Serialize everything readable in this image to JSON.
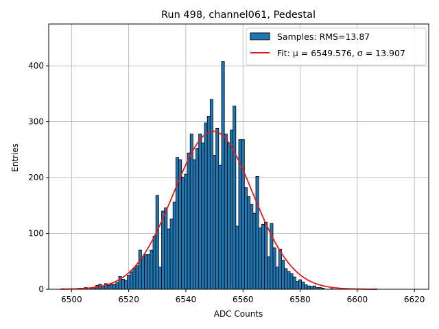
{
  "chart_data": {
    "type": "bar",
    "title": "Run 498, channel061, Pedestal",
    "xlabel": "ADC Counts",
    "ylabel": "Entries",
    "xlim": [
      6492,
      6625
    ],
    "ylim": [
      0,
      475
    ],
    "xticks": [
      6500,
      6520,
      6540,
      6560,
      6580,
      6600,
      6620
    ],
    "yticks": [
      0,
      100,
      200,
      300,
      400
    ],
    "grid": true,
    "legend_position": "top-right",
    "colors": {
      "bar": "#1f77b4",
      "bar_edge": "#000000",
      "fit": "#e41a1c",
      "grid": "#b0b0b0"
    },
    "legend": [
      {
        "label": "Samples: RMS=13.87",
        "marker": "patch"
      },
      {
        "label": "Fit: μ = 6549.576, σ = 13.907",
        "marker": "line"
      }
    ],
    "series": [
      {
        "name": "Samples: RMS=13.87",
        "kind": "histogram",
        "bin_width": 1,
        "bins": [
          {
            "x": 6497,
            "y": 1
          },
          {
            "x": 6500,
            "y": 1
          },
          {
            "x": 6503,
            "y": 2
          },
          {
            "x": 6505,
            "y": 3
          },
          {
            "x": 6507,
            "y": 2
          },
          {
            "x": 6508,
            "y": 4
          },
          {
            "x": 6509,
            "y": 7
          },
          {
            "x": 6510,
            "y": 9
          },
          {
            "x": 6511,
            "y": 6
          },
          {
            "x": 6512,
            "y": 10
          },
          {
            "x": 6513,
            "y": 7
          },
          {
            "x": 6514,
            "y": 9
          },
          {
            "x": 6515,
            "y": 9
          },
          {
            "x": 6516,
            "y": 12
          },
          {
            "x": 6517,
            "y": 23
          },
          {
            "x": 6518,
            "y": 18
          },
          {
            "x": 6519,
            "y": 16
          },
          {
            "x": 6520,
            "y": 25
          },
          {
            "x": 6521,
            "y": 31
          },
          {
            "x": 6522,
            "y": 38
          },
          {
            "x": 6523,
            "y": 42
          },
          {
            "x": 6524,
            "y": 70
          },
          {
            "x": 6525,
            "y": 58
          },
          {
            "x": 6526,
            "y": 62
          },
          {
            "x": 6527,
            "y": 62
          },
          {
            "x": 6528,
            "y": 70
          },
          {
            "x": 6529,
            "y": 95
          },
          {
            "x": 6530,
            "y": 168
          },
          {
            "x": 6531,
            "y": 40
          },
          {
            "x": 6532,
            "y": 140
          },
          {
            "x": 6533,
            "y": 146
          },
          {
            "x": 6534,
            "y": 108
          },
          {
            "x": 6535,
            "y": 126
          },
          {
            "x": 6536,
            "y": 156
          },
          {
            "x": 6537,
            "y": 236
          },
          {
            "x": 6538,
            "y": 232
          },
          {
            "x": 6539,
            "y": 201
          },
          {
            "x": 6540,
            "y": 206
          },
          {
            "x": 6541,
            "y": 244
          },
          {
            "x": 6542,
            "y": 278
          },
          {
            "x": 6543,
            "y": 232
          },
          {
            "x": 6544,
            "y": 252
          },
          {
            "x": 6545,
            "y": 278
          },
          {
            "x": 6546,
            "y": 262
          },
          {
            "x": 6547,
            "y": 298
          },
          {
            "x": 6548,
            "y": 310
          },
          {
            "x": 6549,
            "y": 340
          },
          {
            "x": 6550,
            "y": 240
          },
          {
            "x": 6551,
            "y": 288
          },
          {
            "x": 6552,
            "y": 222
          },
          {
            "x": 6553,
            "y": 408
          },
          {
            "x": 6554,
            "y": 278
          },
          {
            "x": 6555,
            "y": 262
          },
          {
            "x": 6556,
            "y": 285
          },
          {
            "x": 6557,
            "y": 328
          },
          {
            "x": 6558,
            "y": 113
          },
          {
            "x": 6559,
            "y": 268
          },
          {
            "x": 6560,
            "y": 268
          },
          {
            "x": 6561,
            "y": 182
          },
          {
            "x": 6562,
            "y": 166
          },
          {
            "x": 6563,
            "y": 152
          },
          {
            "x": 6564,
            "y": 136
          },
          {
            "x": 6565,
            "y": 202
          },
          {
            "x": 6566,
            "y": 110
          },
          {
            "x": 6567,
            "y": 116
          },
          {
            "x": 6568,
            "y": 120
          },
          {
            "x": 6569,
            "y": 58
          },
          {
            "x": 6570,
            "y": 118
          },
          {
            "x": 6571,
            "y": 74
          },
          {
            "x": 6572,
            "y": 40
          },
          {
            "x": 6573,
            "y": 72
          },
          {
            "x": 6574,
            "y": 52
          },
          {
            "x": 6575,
            "y": 37
          },
          {
            "x": 6576,
            "y": 32
          },
          {
            "x": 6577,
            "y": 28
          },
          {
            "x": 6578,
            "y": 22
          },
          {
            "x": 6579,
            "y": 14
          },
          {
            "x": 6580,
            "y": 17
          },
          {
            "x": 6581,
            "y": 13
          },
          {
            "x": 6582,
            "y": 8
          },
          {
            "x": 6583,
            "y": 6
          },
          {
            "x": 6584,
            "y": 5
          },
          {
            "x": 6585,
            "y": 6
          },
          {
            "x": 6586,
            "y": 3
          },
          {
            "x": 6587,
            "y": 3
          },
          {
            "x": 6588,
            "y": 2
          },
          {
            "x": 6591,
            "y": 1
          },
          {
            "x": 6594,
            "y": 1
          }
        ]
      },
      {
        "name": "Fit: μ = 6549.576, σ = 13.907",
        "kind": "gaussian",
        "mu": 6549.576,
        "sigma": 13.907,
        "amplitude": 283,
        "x_range": [
          6496,
          6607
        ]
      }
    ]
  }
}
